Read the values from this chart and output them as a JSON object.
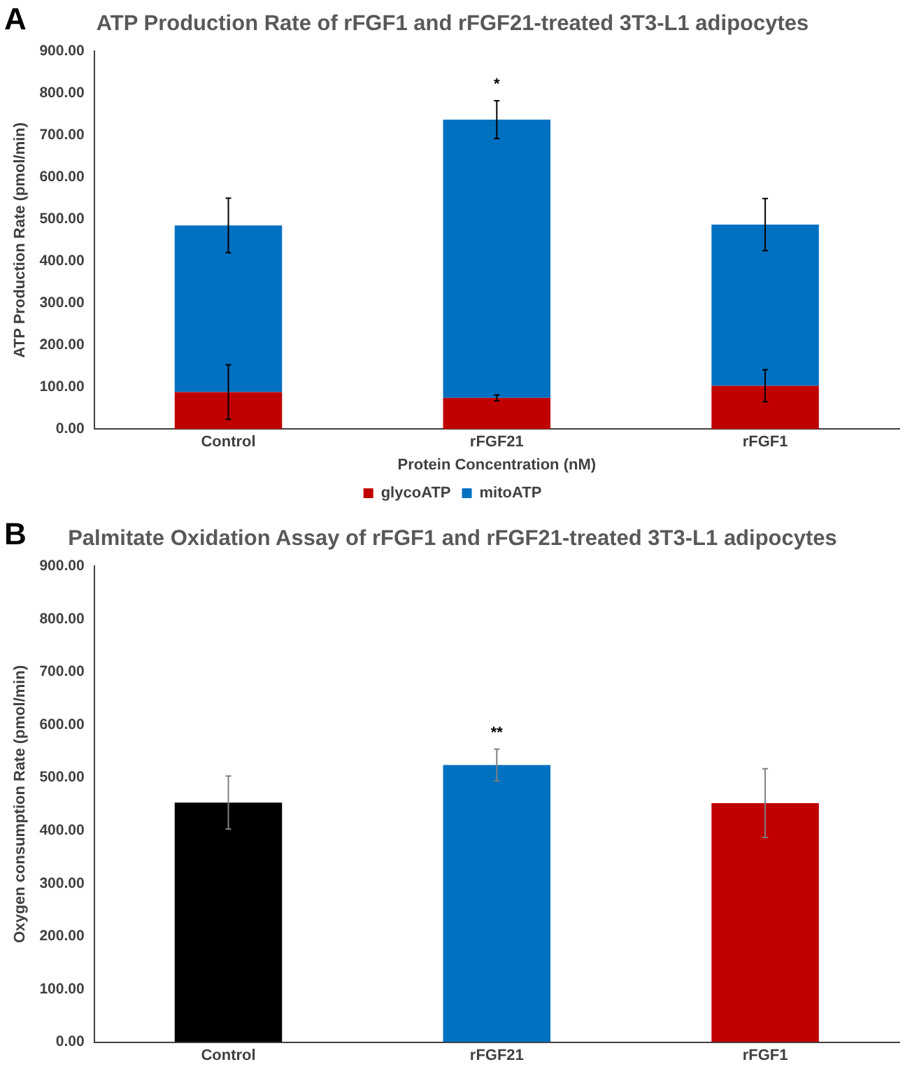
{
  "chart_data": [
    {
      "type": "bar",
      "title": "ATP Production Rate of rFGF1 and rFGF21-treated 3T3-L1 adipocytes",
      "xlabel": "Protein Concentration (nM)",
      "ylabel": "ATP Production Rate (pmol/min)",
      "categories": [
        "Control",
        "rFGF21",
        "rFGF1"
      ],
      "stacked": true,
      "series": [
        {
          "name": "glycoATP",
          "color": "#c00000",
          "values": [
            88,
            74,
            103
          ],
          "errors": [
            65,
            7,
            38
          ]
        },
        {
          "name": "mitoATP",
          "color": "#0070c0",
          "values": [
            397,
            663,
            384
          ],
          "errors": [
            65,
            45,
            62
          ]
        }
      ],
      "ylim": [
        0,
        900
      ],
      "yticks": [
        {
          "value": 0,
          "label": "0.00"
        },
        {
          "value": 100,
          "label": "100.00"
        },
        {
          "value": 200,
          "label": "200.00"
        },
        {
          "value": 300,
          "label": "300.00"
        },
        {
          "value": 400,
          "label": "400.00"
        },
        {
          "value": 500,
          "label": "500.00"
        },
        {
          "value": 600,
          "label": "600.00"
        },
        {
          "value": 700,
          "label": "700.00"
        },
        {
          "value": 800,
          "label": "800.00"
        },
        {
          "value": 900,
          "label": "900.00"
        }
      ],
      "grid": false,
      "legend": "bottom",
      "annotations": [
        "A",
        "*"
      ]
    },
    {
      "type": "bar",
      "title": "Palmitate Oxidation Assay of rFGF1 and rFGF21-treated 3T3-L1 adipocytes",
      "ylabel": "Oxygen consumption Rate (pmol/min)",
      "categories": [
        "Control",
        "rFGF21",
        "rFGF1"
      ],
      "values": [
        453,
        524,
        452
      ],
      "colors": [
        "#000000",
        "#0070c0",
        "#c00000"
      ],
      "errors": [
        50,
        30,
        65
      ],
      "ylim": [
        0,
        900
      ],
      "yticks": [
        {
          "value": 0,
          "label": "0.00"
        },
        {
          "value": 100,
          "label": "100.00"
        },
        {
          "value": 200,
          "label": "200.00"
        },
        {
          "value": 300,
          "label": "300.00"
        },
        {
          "value": 400,
          "label": "400.00"
        },
        {
          "value": 500,
          "label": "500.00"
        },
        {
          "value": 600,
          "label": "600.00"
        },
        {
          "value": 700,
          "label": "700.00"
        },
        {
          "value": 800,
          "label": "800.00"
        },
        {
          "value": 900,
          "label": "900.00"
        }
      ],
      "grid": false,
      "legend": false,
      "annotations": [
        "B",
        "**"
      ]
    }
  ]
}
